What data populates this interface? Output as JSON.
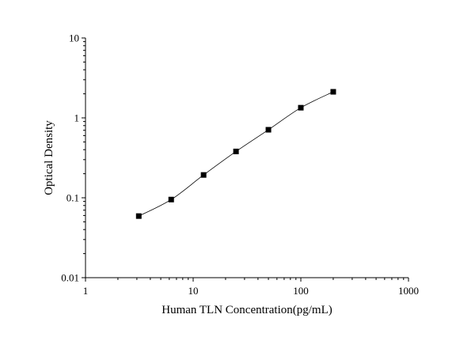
{
  "chart_data": {
    "type": "scatter",
    "title": "",
    "xlabel": "Human TLN Concentration(pg/mL)",
    "ylabel": "Optical Density",
    "xscale": "log",
    "yscale": "log",
    "xlim": [
      1,
      1000
    ],
    "ylim": [
      0.01,
      10
    ],
    "x_ticks": [
      "1",
      "10",
      "100",
      "1000"
    ],
    "y_ticks": [
      "0.01",
      "0.1",
      "1",
      "10"
    ],
    "grid": false,
    "legend": "none",
    "series": [
      {
        "x": [
          3.125,
          6.25,
          12.5,
          25,
          50,
          100,
          200
        ],
        "y": [
          0.059,
          0.095,
          0.193,
          0.38,
          0.71,
          1.34,
          2.12
        ],
        "marker": "square",
        "fit_curve": true
      }
    ]
  }
}
